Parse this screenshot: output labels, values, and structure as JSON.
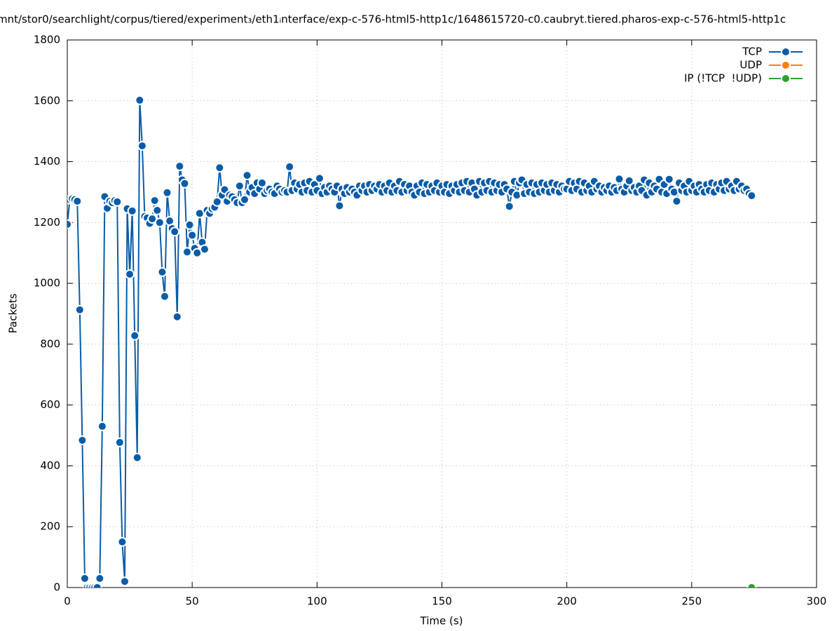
{
  "chart_data": {
    "type": "line",
    "title": "mnt/stor0/searchlight/corpus/tiered/experiment₃/eth1ᵢnterface/exp-c-576-html5-http1c/1648615720-c0.caubryt.tiered.pharos-exp-c-576-html5-http1c",
    "xlabel": "Time (s)",
    "ylabel": "Packets",
    "xlim": [
      0,
      300
    ],
    "xticks": [
      0,
      50,
      100,
      150,
      200,
      250,
      300
    ],
    "ylim": [
      0,
      1800
    ],
    "yticks": [
      0,
      200,
      400,
      600,
      800,
      1000,
      1200,
      1400,
      1600,
      1800
    ],
    "grid": true,
    "legend": "top-right",
    "series": [
      {
        "name": "TCP",
        "color": "#0a5ca8",
        "x": [
          0,
          1,
          2,
          3,
          4,
          5,
          6,
          7,
          8,
          9,
          10,
          11,
          12,
          13,
          14,
          15,
          16,
          17,
          18,
          19,
          20,
          21,
          22,
          23,
          24,
          25,
          26,
          27,
          28,
          29,
          30,
          31,
          32,
          33,
          34,
          35,
          36,
          37,
          38,
          39,
          40,
          41,
          42,
          43,
          44,
          45,
          46,
          47,
          48,
          49,
          50,
          51,
          52,
          53,
          54,
          55,
          56,
          57,
          58,
          59,
          60,
          61,
          62,
          63,
          64,
          65,
          66,
          67,
          68,
          69,
          70,
          71,
          72,
          73,
          74,
          75,
          76,
          77,
          78,
          79,
          80,
          81,
          82,
          83,
          84,
          85,
          86,
          87,
          88,
          89,
          90,
          91,
          92,
          93,
          94,
          95,
          96,
          97,
          98,
          99,
          100,
          101,
          102,
          103,
          104,
          105,
          106,
          107,
          108,
          109,
          110,
          111,
          112,
          113,
          114,
          115,
          116,
          117,
          118,
          119,
          120,
          121,
          122,
          123,
          124,
          125,
          126,
          127,
          128,
          129,
          130,
          131,
          132,
          133,
          134,
          135,
          136,
          137,
          138,
          139,
          140,
          141,
          142,
          143,
          144,
          145,
          146,
          147,
          148,
          149,
          150,
          151,
          152,
          153,
          154,
          155,
          156,
          157,
          158,
          159,
          160,
          161,
          162,
          163,
          164,
          165,
          166,
          167,
          168,
          169,
          170,
          171,
          172,
          173,
          174,
          175,
          176,
          177,
          178,
          179,
          180,
          181,
          182,
          183,
          184,
          185,
          186,
          187,
          188,
          189,
          190,
          191,
          192,
          193,
          194,
          195,
          196,
          197,
          198,
          199,
          200,
          201,
          202,
          203,
          204,
          205,
          206,
          207,
          208,
          209,
          210,
          211,
          212,
          213,
          214,
          215,
          216,
          217,
          218,
          219,
          220,
          221,
          222,
          223,
          224,
          225,
          226,
          227,
          228,
          229,
          230,
          231,
          232,
          233,
          234,
          235,
          236,
          237,
          238,
          239,
          240,
          241,
          242,
          243,
          244,
          245,
          246,
          247,
          248,
          249,
          250,
          251,
          252,
          253,
          254,
          255,
          256,
          257,
          258,
          259,
          260,
          261,
          262,
          263,
          264,
          265,
          266,
          267,
          268,
          269,
          270,
          271,
          272,
          273,
          274
        ],
        "values": [
          1194,
          1275,
          1278,
          1275,
          1270,
          913,
          484,
          30,
          0,
          0,
          0,
          0,
          0,
          30,
          530,
          1285,
          1247,
          1270,
          1265,
          1272,
          1268,
          477,
          150,
          20,
          1245,
          1030,
          1238,
          828,
          427,
          1602,
          1452,
          1220,
          1215,
          1197,
          1212,
          1272,
          1240,
          1200,
          1037,
          957,
          1298,
          1205,
          1180,
          1170,
          890,
          1385,
          1340,
          1328,
          1103,
          1192,
          1158,
          1115,
          1100,
          1230,
          1135,
          1112,
          1240,
          1230,
          1245,
          1250,
          1268,
          1380,
          1290,
          1308,
          1270,
          1290,
          1285,
          1275,
          1265,
          1320,
          1265,
          1275,
          1355,
          1300,
          1315,
          1295,
          1330,
          1310,
          1330,
          1295,
          1305,
          1310,
          1300,
          1295,
          1320,
          1310,
          1300,
          1305,
          1300,
          1383,
          1305,
          1330,
          1310,
          1325,
          1300,
          1330,
          1305,
          1335,
          1300,
          1325,
          1305,
          1345,
          1295,
          1315,
          1300,
          1320,
          1310,
          1300,
          1320,
          1255,
          1310,
          1295,
          1315,
          1300,
          1310,
          1300,
          1290,
          1320,
          1305,
          1320,
          1300,
          1325,
          1305,
          1320,
          1310,
          1325,
          1300,
          1320,
          1305,
          1330,
          1300,
          1320,
          1305,
          1335,
          1300,
          1325,
          1305,
          1320,
          1300,
          1290,
          1320,
          1300,
          1330,
          1295,
          1325,
          1300,
          1320,
          1305,
          1330,
          1300,
          1320,
          1300,
          1325,
          1295,
          1320,
          1305,
          1325,
          1300,
          1330,
          1305,
          1335,
          1300,
          1330,
          1310,
          1290,
          1335,
          1300,
          1330,
          1305,
          1335,
          1300,
          1330,
          1305,
          1325,
          1300,
          1325,
          1310,
          1253,
          1300,
          1335,
          1290,
          1330,
          1340,
          1295,
          1325,
          1300,
          1330,
          1295,
          1325,
          1300,
          1330,
          1305,
          1325,
          1300,
          1330,
          1305,
          1325,
          1300,
          1320,
          1310,
          1310,
          1335,
          1305,
          1330,
          1310,
          1335,
          1300,
          1330,
          1305,
          1320,
          1300,
          1335,
          1310,
          1320,
          1300,
          1315,
          1305,
          1320,
          1300,
          1315,
          1305,
          1343,
          1310,
          1300,
          1320,
          1337,
          1305,
          1315,
          1300,
          1320,
          1305,
          1340,
          1290,
          1330,
          1300,
          1320,
          1310,
          1342,
          1300,
          1325,
          1295,
          1342,
          1310,
          1300,
          1270,
          1330,
          1305,
          1320,
          1300,
          1335,
          1305,
          1320,
          1300,
          1325,
          1310,
          1300,
          1325,
          1305,
          1330,
          1300,
          1325,
          1310,
          1330,
          1305,
          1335,
          1310,
          1320,
          1305,
          1335,
          1310,
          1320,
          1305,
          1310,
          1295,
          1288
        ]
      },
      {
        "name": "UDP",
        "color": "#ff7f0e",
        "x": [
          274
        ],
        "values": [
          0
        ]
      },
      {
        "name": "IP (!TCP  !UDP)",
        "color": "#2ca02c",
        "x": [
          274
        ],
        "values": [
          0
        ]
      }
    ]
  }
}
